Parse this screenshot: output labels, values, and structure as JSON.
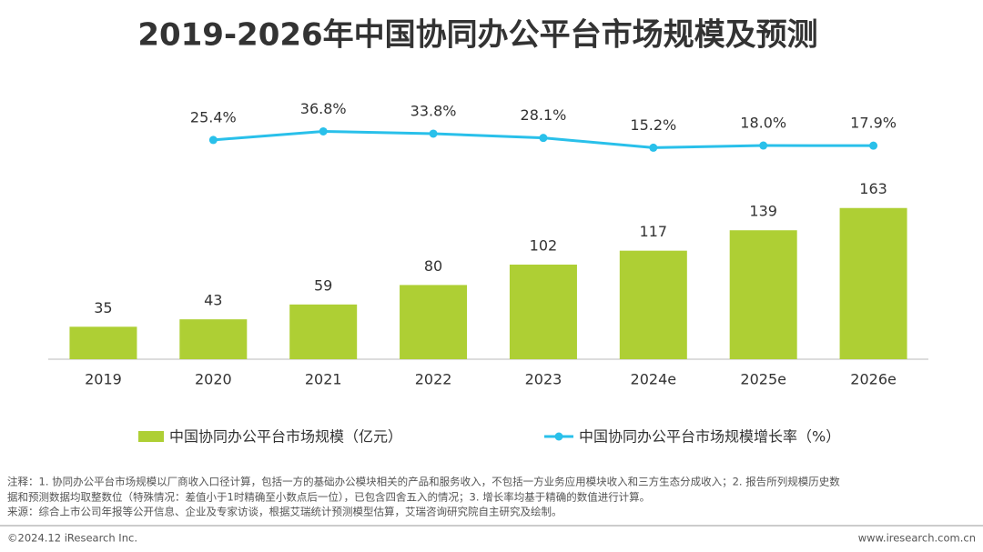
{
  "chart_data": {
    "type": "bar",
    "title": "2019-2026年中国协同办公平台市场规模及预测",
    "categories": [
      "2019",
      "2020",
      "2021",
      "2022",
      "2023",
      "2024e",
      "2025e",
      "2026e"
    ],
    "series": [
      {
        "name": "中国协同办公平台市场规模（亿元）",
        "color": "#aecf34",
        "values": [
          35,
          43,
          59,
          80,
          102,
          117,
          139,
          163
        ]
      },
      {
        "name": "中国协同办公平台市场规模增长率（%）",
        "color": "#29c0ea",
        "type": "line",
        "values": [
          null,
          25.4,
          36.8,
          33.8,
          28.1,
          15.2,
          18.0,
          17.9
        ],
        "value_labels": [
          null,
          "25.4%",
          "36.8%",
          "33.8%",
          "28.1%",
          "15.2%",
          "18.0%",
          "17.9%"
        ]
      }
    ],
    "notes": [
      "注释：1. 协同办公平台市场规模以厂商收入口径计算，包括一方的基础办公模块相关的产品和服务收入，不包括一方业务应用模块收入和三方生态分成收入；2. 报告所列规模历史数",
      "据和预测数据均取整数位（特殊情况：差值小于1时精确至小数点后一位），已包含四舍五入的情况；3. 增长率均基于精确的数值进行计算。",
      "来源：综合上市公司年报等公开信息、企业及专家访谈，根据艾瑞统计预测模型估算，艾瑞咨询研究院自主研究及绘制。"
    ],
    "footer_left": "©2024.12 iResearch Inc.",
    "footer_right": "www.iresearch.com.cn"
  }
}
